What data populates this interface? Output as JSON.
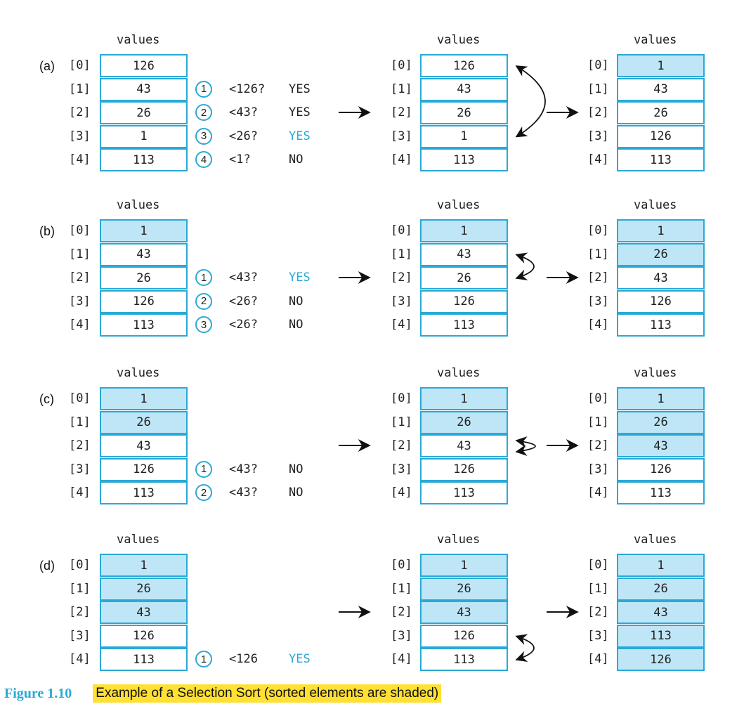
{
  "caption": {
    "figure_label": "Figure 1.10",
    "text": "Example of a Selection Sort (sorted elements are shaded)"
  },
  "array_title": "values",
  "index_labels": [
    "[0]",
    "[1]",
    "[2]",
    "[3]",
    "[4]"
  ],
  "colors": {
    "accent": "#2aa9d6",
    "shade": "#bfe6f7",
    "caption_highlight": "#ffe033",
    "arrow": "#111111"
  },
  "panels": [
    {
      "label": "(a)",
      "initial": {
        "values": [
          "126",
          "43",
          "26",
          "1",
          "113"
        ],
        "shaded": [
          false,
          false,
          false,
          false,
          false
        ]
      },
      "comparisons": [
        {
          "num": "1",
          "test": "<126?",
          "result": "YES",
          "highlight": false
        },
        {
          "num": "2",
          "test": "<43?",
          "result": "YES",
          "highlight": false
        },
        {
          "num": "3",
          "test": "<26?",
          "result": "YES",
          "highlight": true
        },
        {
          "num": "4",
          "test": "<1?",
          "result": "NO",
          "highlight": false
        }
      ],
      "before_swap": {
        "values": [
          "126",
          "43",
          "26",
          "1",
          "113"
        ],
        "shaded": [
          false,
          false,
          false,
          false,
          false
        ]
      },
      "swap": [
        0,
        3
      ],
      "after_swap": {
        "values": [
          "1",
          "43",
          "26",
          "126",
          "113"
        ],
        "shaded": [
          true,
          false,
          false,
          false,
          false
        ]
      }
    },
    {
      "label": "(b)",
      "initial": {
        "values": [
          "1",
          "43",
          "26",
          "126",
          "113"
        ],
        "shaded": [
          true,
          false,
          false,
          false,
          false
        ]
      },
      "comparisons": [
        {
          "num": "1",
          "test": "<43?",
          "result": "YES",
          "highlight": true
        },
        {
          "num": "2",
          "test": "<26?",
          "result": "NO",
          "highlight": false
        },
        {
          "num": "3",
          "test": "<26?",
          "result": "NO",
          "highlight": false
        }
      ],
      "before_swap": {
        "values": [
          "1",
          "43",
          "26",
          "126",
          "113"
        ],
        "shaded": [
          true,
          false,
          false,
          false,
          false
        ]
      },
      "swap": [
        1,
        2
      ],
      "after_swap": {
        "values": [
          "1",
          "26",
          "43",
          "126",
          "113"
        ],
        "shaded": [
          true,
          true,
          false,
          false,
          false
        ]
      }
    },
    {
      "label": "(c)",
      "initial": {
        "values": [
          "1",
          "26",
          "43",
          "126",
          "113"
        ],
        "shaded": [
          true,
          true,
          false,
          false,
          false
        ]
      },
      "comparisons": [
        {
          "num": "1",
          "test": "<43?",
          "result": "NO",
          "highlight": false
        },
        {
          "num": "2",
          "test": "<43?",
          "result": "NO",
          "highlight": false
        }
      ],
      "before_swap": {
        "values": [
          "1",
          "26",
          "43",
          "126",
          "113"
        ],
        "shaded": [
          true,
          true,
          false,
          false,
          false
        ]
      },
      "swap": [
        2,
        2
      ],
      "after_swap": {
        "values": [
          "1",
          "26",
          "43",
          "126",
          "113"
        ],
        "shaded": [
          true,
          true,
          true,
          false,
          false
        ]
      }
    },
    {
      "label": "(d)",
      "initial": {
        "values": [
          "1",
          "26",
          "43",
          "126",
          "113"
        ],
        "shaded": [
          true,
          true,
          true,
          false,
          false
        ]
      },
      "comparisons": [
        {
          "num": "1",
          "test": "<126",
          "result": "YES",
          "highlight": true
        }
      ],
      "before_swap": {
        "values": [
          "1",
          "26",
          "43",
          "126",
          "113"
        ],
        "shaded": [
          true,
          true,
          true,
          false,
          false
        ]
      },
      "swap": [
        3,
        4
      ],
      "after_swap": {
        "values": [
          "1",
          "26",
          "43",
          "113",
          "126"
        ],
        "shaded": [
          true,
          true,
          true,
          true,
          true
        ]
      }
    }
  ]
}
